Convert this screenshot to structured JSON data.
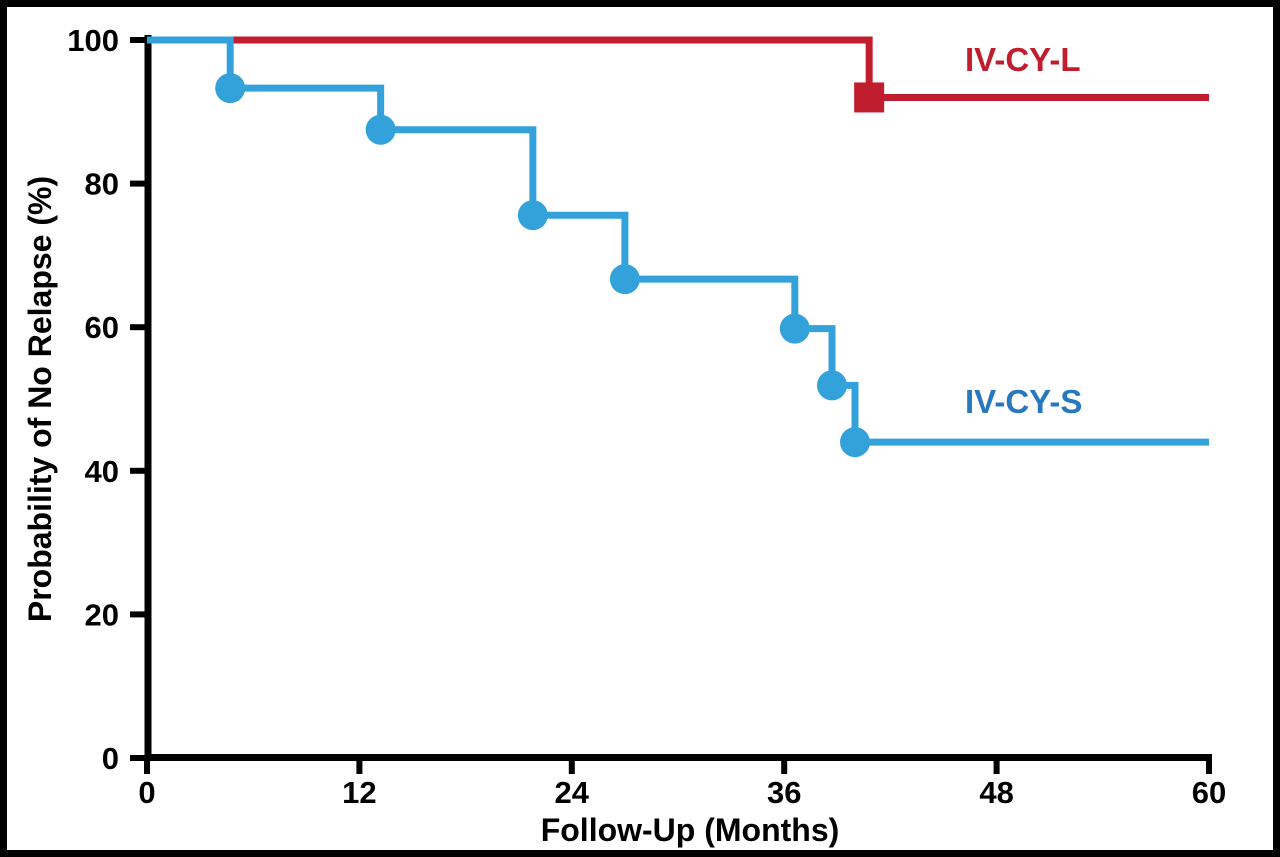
{
  "figure": {
    "background_color": "#ffffff",
    "border_color": "#000000"
  },
  "chart_data": {
    "type": "line",
    "subtype": "kaplan-meier-step-curve",
    "title": "",
    "xlabel": "Follow-Up (Months)",
    "ylabel": "Probability of No Relapse (%)",
    "xlim": [
      0,
      60
    ],
    "ylim": [
      0,
      100
    ],
    "x_ticks": [
      0,
      12,
      24,
      36,
      48,
      60
    ],
    "y_ticks": [
      0,
      20,
      40,
      60,
      80,
      100
    ],
    "grid": false,
    "legend_position": "inline-right-of-curves",
    "series": [
      {
        "name": "IV-CY-L",
        "color": "#c01e2f",
        "label_color": "#c01e2f",
        "marker": "square",
        "marker_size": 30,
        "start": [
          0,
          100
        ],
        "end_x": 60,
        "steps": [
          [
            40.8,
            92.0
          ]
        ]
      },
      {
        "name": "IV-CY-S",
        "color": "#33a2db",
        "label_color": "#2878be",
        "marker": "circle",
        "marker_size": 30,
        "start": [
          0,
          100
        ],
        "end_x": 60,
        "steps": [
          [
            4.7,
            93.3
          ],
          [
            13.2,
            87.5
          ],
          [
            21.8,
            75.6
          ],
          [
            27.0,
            66.7
          ],
          [
            36.6,
            59.8
          ],
          [
            38.7,
            51.9
          ],
          [
            40.0,
            44.0
          ]
        ]
      }
    ]
  }
}
